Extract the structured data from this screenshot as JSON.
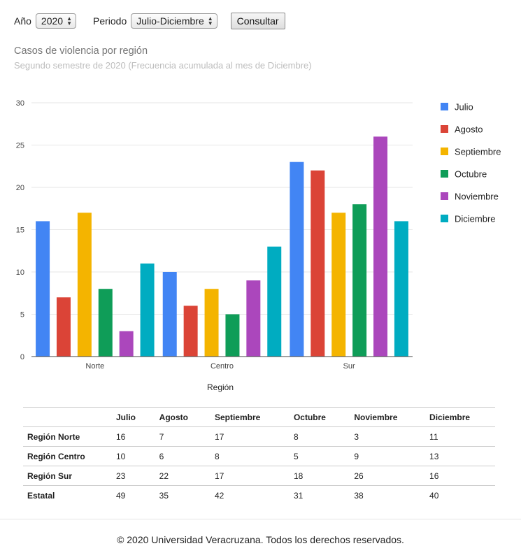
{
  "controls": {
    "year_label": "Año",
    "year_value": "2020",
    "period_label": "Periodo",
    "period_value": "Julio-Diciembre",
    "submit_label": "Consultar"
  },
  "chart_data": {
    "type": "bar",
    "title": "Casos de violencia por región",
    "subtitle": "Segundo semestre de 2020 (Frecuencia acumulada al mes de Diciembre)",
    "xlabel": "Región",
    "ylabel": "",
    "ylim": [
      0,
      30
    ],
    "yticks": [
      0,
      5,
      10,
      15,
      20,
      25,
      30
    ],
    "grid": true,
    "legend_position": "right",
    "categories": [
      "Norte",
      "Centro",
      "Sur"
    ],
    "series": [
      {
        "name": "Julio",
        "color": "#4285f4",
        "values": [
          16,
          10,
          23
        ]
      },
      {
        "name": "Agosto",
        "color": "#db4437",
        "values": [
          7,
          6,
          22
        ]
      },
      {
        "name": "Septiembre",
        "color": "#f4b400",
        "values": [
          17,
          8,
          17
        ]
      },
      {
        "name": "Octubre",
        "color": "#0f9d58",
        "values": [
          8,
          5,
          18
        ]
      },
      {
        "name": "Noviembre",
        "color": "#ab47bc",
        "values": [
          3,
          9,
          26
        ]
      },
      {
        "name": "Diciembre",
        "color": "#00acc1",
        "values": [
          11,
          13,
          16
        ]
      }
    ]
  },
  "table": {
    "corner": "",
    "columns": [
      "Julio",
      "Agosto",
      "Septiembre",
      "Octubre",
      "Noviembre",
      "Diciembre"
    ],
    "rows": [
      {
        "label": "Región Norte",
        "values": [
          "16",
          "7",
          "17",
          "8",
          "3",
          "11"
        ]
      },
      {
        "label": "Región Centro",
        "values": [
          "10",
          "6",
          "8",
          "5",
          "9",
          "13"
        ]
      },
      {
        "label": "Región Sur",
        "values": [
          "23",
          "22",
          "17",
          "18",
          "26",
          "16"
        ]
      },
      {
        "label": "Estatal",
        "values": [
          "49",
          "35",
          "42",
          "31",
          "38",
          "40"
        ]
      }
    ]
  },
  "footer": {
    "text": "© 2020 Universidad Veracruzana. Todos los derechos reservados."
  }
}
